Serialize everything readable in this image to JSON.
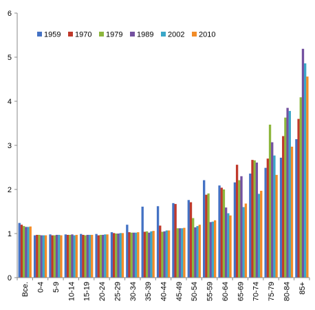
{
  "chart_data": {
    "type": "bar",
    "categories": [
      "Все.",
      "0-4",
      "5-9",
      "10-14",
      "15-19",
      "20-24",
      "25-29",
      "30-34",
      "35-39",
      "40-44",
      "45-49",
      "50-54",
      "55-59",
      "60-64",
      "65-69",
      "70-74",
      "75-79",
      "80-84",
      "85+"
    ],
    "series": [
      {
        "name": "1959",
        "color": "#4472C4",
        "values": [
          1.24,
          0.96,
          0.98,
          0.98,
          0.99,
          0.99,
          1.03,
          1.2,
          1.61,
          1.62,
          1.69,
          1.76,
          2.21,
          2.09,
          2.16,
          2.36,
          2.49,
          2.72,
          3.14
        ]
      },
      {
        "name": "1970",
        "color": "#C0392B",
        "values": [
          1.2,
          0.97,
          0.96,
          0.97,
          0.97,
          0.96,
          1.01,
          1.03,
          1.04,
          1.18,
          1.67,
          1.71,
          1.88,
          2.04,
          2.56,
          2.67,
          2.7,
          3.21,
          3.6
        ]
      },
      {
        "name": "1979",
        "color": "#8DB73D",
        "values": [
          1.17,
          0.97,
          0.96,
          0.97,
          0.96,
          0.97,
          1.0,
          1.02,
          1.05,
          1.04,
          1.12,
          1.35,
          1.91,
          2.0,
          2.21,
          2.66,
          3.47,
          3.63,
          4.09
        ]
      },
      {
        "name": "1989",
        "color": "#7451A0",
        "values": [
          1.15,
          0.96,
          0.97,
          0.98,
          0.97,
          0.97,
          1.0,
          1.02,
          1.02,
          1.05,
          1.12,
          1.14,
          1.26,
          1.59,
          2.3,
          2.61,
          3.07,
          3.85,
          5.19
        ]
      },
      {
        "name": "2002",
        "color": "#3BA7C8",
        "values": [
          1.15,
          0.96,
          0.97,
          0.96,
          0.97,
          0.98,
          1.01,
          1.02,
          1.05,
          1.07,
          1.12,
          1.17,
          1.27,
          1.46,
          1.6,
          1.9,
          2.77,
          3.78,
          4.86
        ]
      },
      {
        "name": "2010",
        "color": "#F28C28",
        "values": [
          1.16,
          0.96,
          0.96,
          0.97,
          0.97,
          0.98,
          1.01,
          1.03,
          1.06,
          1.07,
          1.13,
          1.2,
          1.3,
          1.41,
          1.68,
          1.97,
          2.33,
          2.97,
          4.56
        ]
      }
    ],
    "title": "",
    "xlabel": "",
    "ylabel": "",
    "ylim": [
      0,
      6
    ],
    "yticks": [
      "0",
      "1",
      "2",
      "3",
      "4",
      "5",
      "6"
    ],
    "grid": false,
    "legend_position": "top-left"
  }
}
